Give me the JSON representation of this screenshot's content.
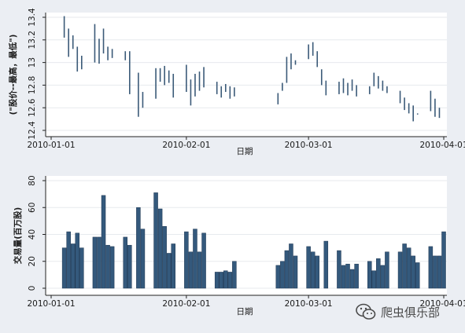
{
  "colors": {
    "background": "#ebeef3",
    "plot_background": "#ffffff",
    "price_bar": "#3b5a78",
    "volume_bar": "#34597c",
    "volume_bar_edge": "#1d3550",
    "gridline": "#e7eaee",
    "axis": "#222222"
  },
  "watermark": {
    "icon": "wechat-icon",
    "text": "爬虫俱乐部"
  },
  "chart_data": [
    {
      "type": "bar",
      "style": "high-low range bars",
      "ylabel": "(\"股价--最高，最低\")",
      "xlabel": "日期",
      "ylim": [
        12.4,
        13.4
      ],
      "yticks": [
        12.4,
        12.6,
        12.8,
        13,
        13.2,
        13.4
      ],
      "xlim": [
        "2010-01-01",
        "2010-04-01"
      ],
      "xticks": [
        "2010-01-01",
        "2010-02-01",
        "2010-03-01",
        "2010-04-01"
      ],
      "grid": true,
      "x": [
        "2010-01-04",
        "2010-01-05",
        "2010-01-06",
        "2010-01-07",
        "2010-01-08",
        "2010-01-11",
        "2010-01-12",
        "2010-01-13",
        "2010-01-14",
        "2010-01-15",
        "2010-01-18",
        "2010-01-19",
        "2010-01-21",
        "2010-01-22",
        "2010-01-25",
        "2010-01-26",
        "2010-01-27",
        "2010-01-28",
        "2010-01-29",
        "2010-02-01",
        "2010-02-02",
        "2010-02-03",
        "2010-02-04",
        "2010-02-05",
        "2010-02-08",
        "2010-02-09",
        "2010-02-10",
        "2010-02-11",
        "2010-02-12",
        "2010-02-22",
        "2010-02-23",
        "2010-02-24",
        "2010-02-25",
        "2010-02-26",
        "2010-03-01",
        "2010-03-02",
        "2010-03-03",
        "2010-03-04",
        "2010-03-05",
        "2010-03-08",
        "2010-03-09",
        "2010-03-10",
        "2010-03-11",
        "2010-03-12",
        "2010-03-15",
        "2010-03-16",
        "2010-03-17",
        "2010-03-18",
        "2010-03-19",
        "2010-03-22",
        "2010-03-23",
        "2010-03-24",
        "2010-03-25",
        "2010-03-26",
        "2010-03-29",
        "2010-03-30",
        "2010-03-31"
      ],
      "high": [
        13.41,
        13.3,
        13.24,
        13.14,
        13.06,
        13.34,
        13.21,
        13.3,
        13.14,
        13.12,
        13.1,
        13.1,
        12.91,
        12.74,
        12.95,
        12.95,
        12.97,
        12.93,
        12.9,
        12.98,
        12.85,
        12.9,
        12.92,
        12.96,
        12.83,
        12.79,
        12.81,
        12.79,
        12.78,
        12.73,
        12.82,
        13.05,
        13.08,
        13.02,
        13.16,
        13.18,
        13.1,
        12.94,
        12.84,
        12.83,
        12.86,
        12.82,
        12.85,
        12.8,
        12.79,
        12.91,
        12.88,
        12.84,
        12.79,
        12.75,
        12.69,
        12.64,
        12.62,
        12.55,
        12.75,
        12.68,
        12.6
      ],
      "low": [
        13.22,
        13.05,
        13.12,
        12.92,
        12.94,
        13.0,
        12.99,
        13.08,
        13.02,
        13.04,
        13.02,
        12.72,
        12.52,
        12.6,
        12.68,
        12.83,
        12.8,
        12.82,
        12.69,
        12.74,
        12.62,
        12.7,
        12.75,
        12.78,
        12.72,
        12.69,
        12.74,
        12.68,
        12.7,
        12.63,
        12.75,
        12.82,
        12.94,
        12.98,
        13.03,
        13.06,
        12.96,
        12.8,
        12.71,
        12.72,
        12.73,
        12.71,
        12.75,
        12.7,
        12.72,
        12.79,
        12.77,
        12.75,
        12.73,
        12.64,
        12.58,
        12.55,
        12.48,
        12.54,
        12.57,
        12.52,
        12.51
      ]
    },
    {
      "type": "bar",
      "ylabel": "交易量(百万股)",
      "xlabel": "日期",
      "ylim": [
        0,
        80
      ],
      "yticks": [
        0,
        20,
        40,
        60,
        80
      ],
      "xlim": [
        "2010-01-01",
        "2010-04-01"
      ],
      "xticks": [
        "2010-01-01",
        "2010-02-01",
        "2010-03-01",
        "2010-04-01"
      ],
      "grid": true,
      "x": [
        "2010-01-04",
        "2010-01-05",
        "2010-01-06",
        "2010-01-07",
        "2010-01-08",
        "2010-01-11",
        "2010-01-12",
        "2010-01-13",
        "2010-01-14",
        "2010-01-15",
        "2010-01-18",
        "2010-01-19",
        "2010-01-21",
        "2010-01-22",
        "2010-01-25",
        "2010-01-26",
        "2010-01-27",
        "2010-01-28",
        "2010-01-29",
        "2010-02-01",
        "2010-02-02",
        "2010-02-03",
        "2010-02-04",
        "2010-02-05",
        "2010-02-08",
        "2010-02-09",
        "2010-02-10",
        "2010-02-11",
        "2010-02-12",
        "2010-02-22",
        "2010-02-23",
        "2010-02-24",
        "2010-02-25",
        "2010-02-26",
        "2010-03-01",
        "2010-03-02",
        "2010-03-03",
        "2010-03-05",
        "2010-03-08",
        "2010-03-09",
        "2010-03-10",
        "2010-03-11",
        "2010-03-12",
        "2010-03-15",
        "2010-03-16",
        "2010-03-17",
        "2010-03-18",
        "2010-03-19",
        "2010-03-22",
        "2010-03-23",
        "2010-03-24",
        "2010-03-25",
        "2010-03-26",
        "2010-03-29",
        "2010-03-30",
        "2010-03-31",
        "2010-04-01"
      ],
      "values": [
        30,
        42,
        33,
        41,
        30,
        38,
        38,
        69,
        32,
        31,
        38,
        32,
        60,
        44,
        71,
        59,
        46,
        26,
        33,
        42,
        27,
        44,
        27,
        41,
        12,
        12,
        13,
        12,
        20,
        17,
        20,
        28,
        33,
        24,
        31,
        27,
        24,
        35,
        28,
        17,
        18,
        14,
        18,
        20,
        13,
        22,
        17,
        27,
        27,
        33,
        30,
        24,
        19,
        31,
        24,
        24,
        42
      ]
    }
  ]
}
